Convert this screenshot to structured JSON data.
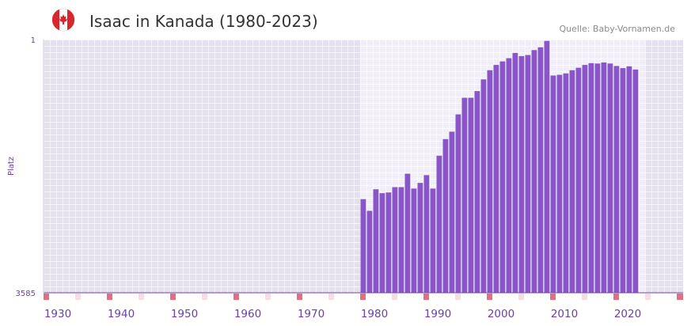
{
  "header": {
    "title": "Isaac in Kanada (1980-2023)",
    "source": "Quelle: Baby-Vornamen.de",
    "flag_icon": "canada-flag-icon"
  },
  "colors": {
    "bar": "#8a55c8",
    "plot_bg_left": "#e4e0ee",
    "plot_bg_mid": "#f1eef8",
    "plot_bg_right": "#e4e0ee",
    "axis": "#7a3fa8",
    "tick_mark": "#e07080",
    "tick_mark_light": "#f7dde3",
    "flag_red": "#d8262c"
  },
  "chart_data": {
    "type": "bar",
    "title": "Isaac in Kanada (1980-2023)",
    "xlabel": "",
    "ylabel": "Platz",
    "y_inverted": true,
    "ylim": [
      3585,
      1
    ],
    "yticks": [
      1,
      3585
    ],
    "xlim": [
      1928,
      2029
    ],
    "xticks": [
      1930,
      1940,
      1950,
      1960,
      1970,
      1980,
      1990,
      2000,
      2010,
      2020
    ],
    "highlight_range": [
      1978,
      2022
    ],
    "categories": [
      1978,
      1979,
      1980,
      1981,
      1982,
      1983,
      1984,
      1985,
      1986,
      1987,
      1988,
      1989,
      1990,
      1991,
      1992,
      1993,
      1994,
      1995,
      1996,
      1997,
      1998,
      1999,
      2000,
      2001,
      2002,
      2003,
      2004,
      2005,
      2006,
      2007,
      2008,
      2009,
      2010,
      2011,
      2012,
      2013,
      2014,
      2015,
      2016,
      2017,
      2018,
      2019,
      2020,
      2021
    ],
    "values": [
      2260,
      2425,
      2120,
      2175,
      2165,
      2090,
      2090,
      1900,
      2110,
      2030,
      1920,
      2110,
      1645,
      1410,
      1305,
      1060,
      825,
      825,
      730,
      565,
      435,
      360,
      310,
      265,
      190,
      235,
      220,
      150,
      110,
      20,
      510,
      500,
      480,
      435,
      400,
      360,
      335,
      340,
      325,
      340,
      375,
      405,
      380,
      425
    ]
  }
}
